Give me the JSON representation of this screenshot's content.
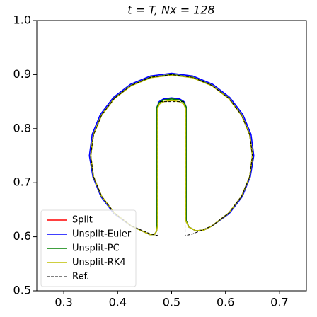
{
  "chart_data": {
    "type": "line",
    "title": "t = T, Nx = 128",
    "xlim": [
      0.25,
      0.75
    ],
    "ylim": [
      0.5,
      1.0
    ],
    "xticks": [
      0.3,
      0.4,
      0.5,
      0.6,
      0.7
    ],
    "yticks": [
      0.5,
      0.6,
      0.7,
      0.8,
      0.9,
      {
        "value": 1.0,
        "label": "1.0"
      }
    ],
    "grid": false,
    "legend": "lower left",
    "series": [
      {
        "name": "Split",
        "color": "#ff0000",
        "linestyle": "solid",
        "x": [
          0.473,
          0.473,
          0.477,
          0.485,
          0.5,
          0.515,
          0.523,
          0.527,
          0.527,
          0.532,
          0.545,
          0.56,
          0.575,
          0.6061,
          0.6299,
          0.6449,
          0.65,
          0.6449,
          0.6299,
          0.6061,
          0.575,
          0.5388,
          0.5,
          0.4612,
          0.425,
          0.3939,
          0.3701,
          0.3551,
          0.35,
          0.3551,
          0.3701,
          0.3939,
          0.425,
          0.46,
          0.468,
          0.472,
          0.473
        ],
        "values": [
          0.62,
          0.84,
          0.849,
          0.854,
          0.856,
          0.854,
          0.849,
          0.84,
          0.63,
          0.618,
          0.611,
          0.6125,
          0.6201,
          0.6439,
          0.675,
          0.7112,
          0.75,
          0.7888,
          0.825,
          0.8561,
          0.8799,
          0.8949,
          0.9,
          0.8949,
          0.8799,
          0.8561,
          0.825,
          0.7888,
          0.75,
          0.7112,
          0.675,
          0.6439,
          0.6201,
          0.604,
          0.604,
          0.61,
          0.62
        ]
      },
      {
        "name": "Unsplit-Euler",
        "color": "#0000ff",
        "linestyle": "solid",
        "x": [
          0.473,
          0.473,
          0.477,
          0.485,
          0.5,
          0.515,
          0.523,
          0.527,
          0.527,
          0.532,
          0.545,
          0.56,
          0.575,
          0.607,
          0.631,
          0.646,
          0.6525,
          0.6473,
          0.6321,
          0.6078,
          0.5763,
          0.5395,
          0.5,
          0.4605,
          0.4237,
          0.3922,
          0.3679,
          0.3527,
          0.3475,
          0.354,
          0.369,
          0.393,
          0.425,
          0.46,
          0.468,
          0.472,
          0.473
        ],
        "values": [
          0.62,
          0.84,
          0.85,
          0.855,
          0.857,
          0.855,
          0.85,
          0.84,
          0.63,
          0.618,
          0.611,
          0.6125,
          0.62,
          0.643,
          0.674,
          0.711,
          0.75,
          0.7895,
          0.8263,
          0.8578,
          0.8821,
          0.8973,
          0.9025,
          0.8973,
          0.8821,
          0.8578,
          0.8263,
          0.7895,
          0.75,
          0.711,
          0.674,
          0.643,
          0.62,
          0.604,
          0.604,
          0.61,
          0.62
        ]
      },
      {
        "name": "Unsplit-PC",
        "color": "#008000",
        "linestyle": "solid",
        "x": [
          0.473,
          0.473,
          0.477,
          0.485,
          0.5,
          0.515,
          0.523,
          0.527,
          0.527,
          0.532,
          0.545,
          0.56,
          0.575,
          0.6061,
          0.6299,
          0.6449,
          0.65,
          0.6449,
          0.6299,
          0.6061,
          0.575,
          0.5388,
          0.5,
          0.4612,
          0.425,
          0.3939,
          0.3701,
          0.3551,
          0.35,
          0.3551,
          0.3701,
          0.3939,
          0.425,
          0.46,
          0.468,
          0.472,
          0.473
        ],
        "values": [
          0.62,
          0.84,
          0.848,
          0.853,
          0.855,
          0.853,
          0.848,
          0.84,
          0.63,
          0.618,
          0.611,
          0.6125,
          0.6201,
          0.6439,
          0.675,
          0.7112,
          0.75,
          0.7888,
          0.825,
          0.8561,
          0.8799,
          0.8949,
          0.9,
          0.8949,
          0.8799,
          0.8561,
          0.825,
          0.7888,
          0.75,
          0.7112,
          0.675,
          0.6439,
          0.6201,
          0.604,
          0.604,
          0.61,
          0.62
        ]
      },
      {
        "name": "Unsplit-RK4",
        "color": "#bfbf00",
        "linestyle": "solid",
        "x": [
          0.474,
          0.474,
          0.478,
          0.486,
          0.5,
          0.514,
          0.522,
          0.526,
          0.526,
          0.532,
          0.545,
          0.56,
          0.575,
          0.6061,
          0.6299,
          0.6449,
          0.65,
          0.6449,
          0.6299,
          0.6061,
          0.575,
          0.5388,
          0.5,
          0.4612,
          0.425,
          0.3939,
          0.3701,
          0.3551,
          0.35,
          0.3551,
          0.3701,
          0.3939,
          0.425,
          0.46,
          0.468,
          0.472,
          0.474
        ],
        "values": [
          0.62,
          0.838,
          0.846,
          0.85,
          0.852,
          0.85,
          0.846,
          0.838,
          0.63,
          0.618,
          0.611,
          0.6125,
          0.6201,
          0.6439,
          0.675,
          0.7112,
          0.75,
          0.7885,
          0.8245,
          0.8555,
          0.8792,
          0.8942,
          0.899,
          0.8942,
          0.8792,
          0.8555,
          0.8245,
          0.7885,
          0.75,
          0.7112,
          0.675,
          0.6439,
          0.6201,
          0.604,
          0.604,
          0.61,
          0.62
        ]
      },
      {
        "name": "Ref.",
        "color": "#000000",
        "linestyle": "dashed",
        "x": [
          0.475,
          0.475,
          0.525,
          0.525,
          0.5388,
          0.575,
          0.6061,
          0.6299,
          0.6449,
          0.65,
          0.6449,
          0.6299,
          0.6061,
          0.575,
          0.5388,
          0.5,
          0.4612,
          0.425,
          0.3939,
          0.3701,
          0.3551,
          0.35,
          0.3551,
          0.3701,
          0.3939,
          0.425,
          0.4612,
          0.475
        ],
        "values": [
          0.6021,
          0.85,
          0.85,
          0.6021,
          0.6051,
          0.6201,
          0.6439,
          0.675,
          0.7112,
          0.75,
          0.7888,
          0.825,
          0.8561,
          0.8799,
          0.8949,
          0.9,
          0.8949,
          0.8799,
          0.8561,
          0.825,
          0.7888,
          0.75,
          0.7112,
          0.675,
          0.6439,
          0.6201,
          0.6051,
          0.6021
        ]
      }
    ]
  }
}
